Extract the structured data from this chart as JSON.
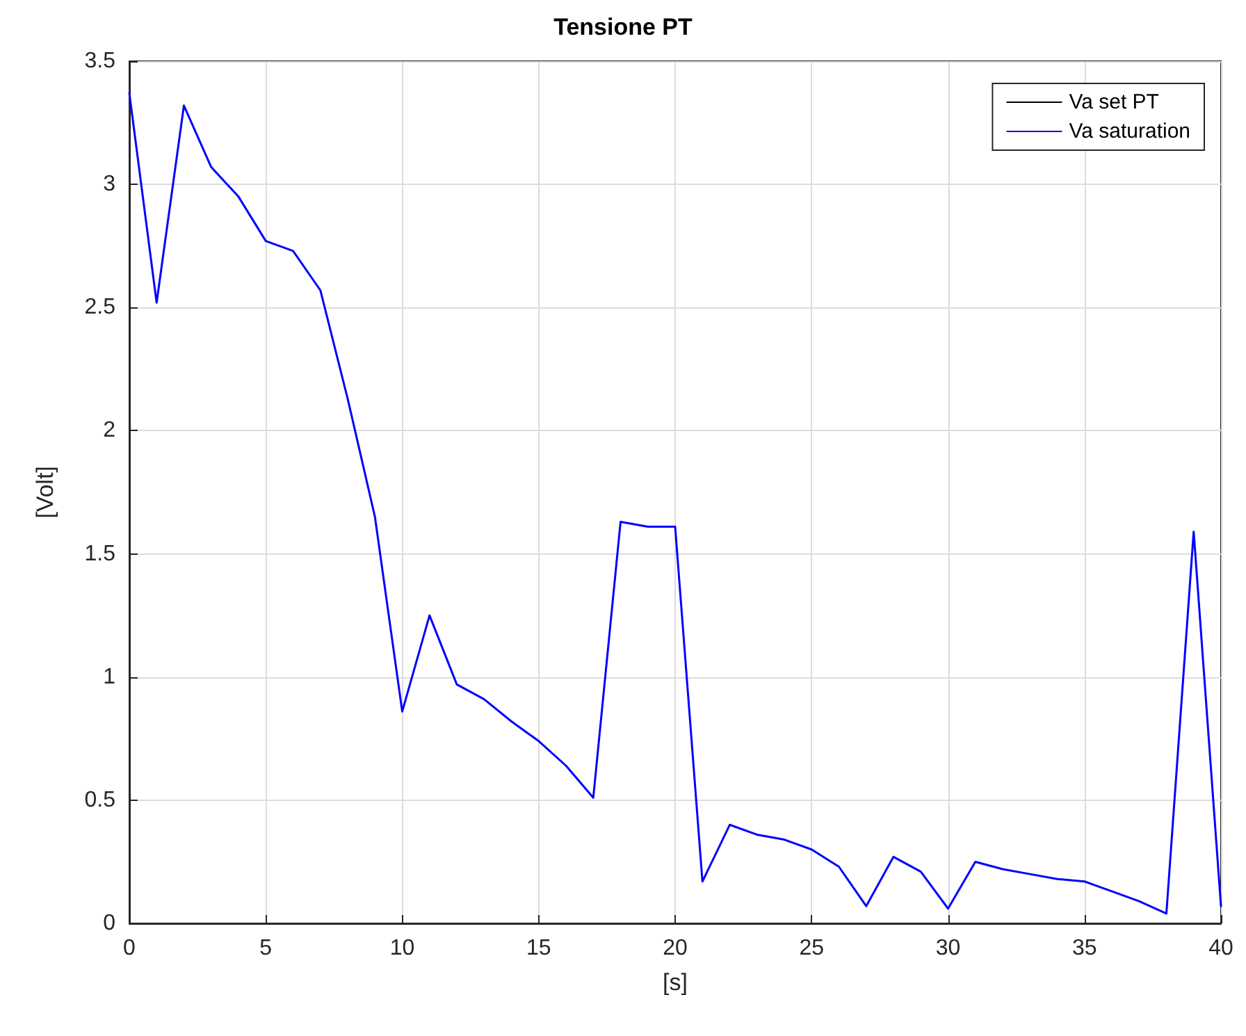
{
  "chart_data": {
    "type": "line",
    "title": "Tensione PT",
    "xlabel": "[s]",
    "ylabel": "[Volt]",
    "x": [
      0,
      1,
      2,
      3,
      4,
      5,
      6,
      7,
      8,
      9,
      10,
      11,
      12,
      13,
      14,
      15,
      16,
      17,
      18,
      19,
      20,
      21,
      22,
      23,
      24,
      25,
      26,
      27,
      28,
      29,
      30,
      31,
      32,
      33,
      34,
      35,
      36,
      37,
      38,
      39,
      40
    ],
    "series": [
      {
        "name": "Va set PT",
        "color": "#000000",
        "values": [
          null,
          null,
          null,
          null,
          null,
          null,
          null,
          null,
          null,
          null,
          null,
          null,
          null,
          null,
          null,
          null,
          null,
          null,
          null,
          null,
          null,
          null,
          null,
          null,
          null,
          null,
          null,
          null,
          null,
          null,
          null,
          null,
          null,
          null,
          null,
          null,
          null,
          null,
          null,
          null,
          null
        ]
      },
      {
        "name": "Va saturation",
        "color": "#0000ff",
        "values": [
          3.37,
          2.52,
          3.32,
          3.07,
          2.95,
          2.77,
          2.73,
          2.57,
          2.13,
          1.65,
          0.86,
          1.25,
          0.97,
          0.91,
          0.82,
          0.74,
          0.64,
          0.51,
          1.63,
          1.61,
          1.61,
          0.17,
          0.4,
          0.36,
          0.34,
          0.3,
          0.23,
          0.07,
          0.27,
          0.21,
          0.06,
          0.25,
          0.22,
          0.2,
          0.18,
          0.17,
          0.13,
          0.09,
          0.04,
          1.59,
          0.07
        ]
      }
    ],
    "xlim": [
      0,
      40
    ],
    "xticks": [
      0,
      5,
      10,
      15,
      20,
      25,
      30,
      35,
      40
    ],
    "ylim": [
      0,
      3.5
    ],
    "yticks": [
      0,
      0.5,
      1,
      1.5,
      2,
      2.5,
      3,
      3.5
    ],
    "grid": true,
    "legend": "top right",
    "marker": "none",
    "line_style": "solid"
  }
}
